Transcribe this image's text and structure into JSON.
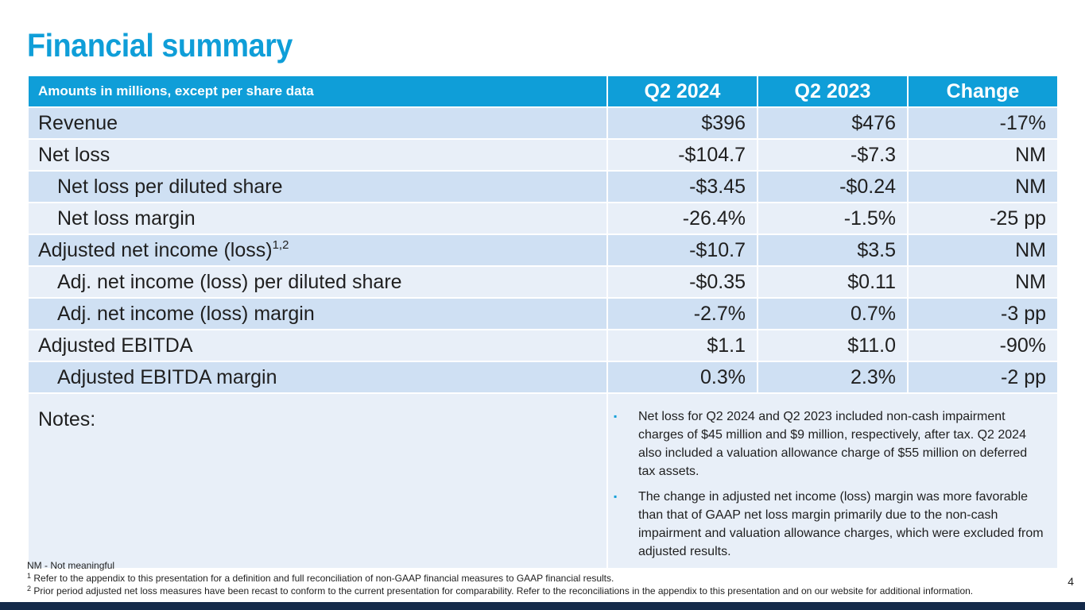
{
  "title": "Financial summary",
  "table": {
    "header": {
      "label": "Amounts in millions, except per share data",
      "col1": "Q2 2024",
      "col2": "Q2 2023",
      "col3": "Change"
    },
    "rows": [
      {
        "label": "Revenue",
        "sup": "",
        "q2_2024": "$396",
        "q2_2023": "$476",
        "change": "-17%"
      },
      {
        "label": "Net loss",
        "sup": "",
        "q2_2024": "-$104.7",
        "q2_2023": "-$7.3",
        "change": "NM"
      },
      {
        "label": "Net loss per diluted share",
        "sup": "",
        "q2_2024": "-$3.45",
        "q2_2023": "-$0.24",
        "change": "NM"
      },
      {
        "label": "Net loss margin",
        "sup": "",
        "q2_2024": "-26.4%",
        "q2_2023": "-1.5%",
        "change": "-25 pp"
      },
      {
        "label": "Adjusted net income (loss)",
        "sup": "1,2",
        "q2_2024": "-$10.7",
        "q2_2023": "$3.5",
        "change": "NM"
      },
      {
        "label": "Adj. net income (loss) per diluted share",
        "sup": "",
        "q2_2024": "-$0.35",
        "q2_2023": "$0.11",
        "change": "NM"
      },
      {
        "label": "Adj. net income (loss) margin",
        "sup": "",
        "q2_2024": "-2.7%",
        "q2_2023": "0.7%",
        "change": "-3 pp"
      },
      {
        "label": "Adjusted EBITDA",
        "sup": "",
        "q2_2024": "$1.1",
        "q2_2023": "$11.0",
        "change": "-90%"
      },
      {
        "label": "Adjusted EBITDA margin",
        "sup": "",
        "q2_2024": "0.3%",
        "q2_2023": "2.3%",
        "change": "-2 pp"
      }
    ],
    "notes_label": "Notes:",
    "notes_bullet": "▪",
    "notes": [
      "Net loss for Q2 2024 and Q2 2023 included non-cash impairment charges of $45 million and $9 million, respectively, after tax. Q2 2024 also included a valuation allowance charge of $55 million on deferred tax assets.",
      "The change in adjusted net income (loss) margin was more favorable than that of GAAP net loss margin primarily due to the non-cash impairment and valuation allowance charges, which were excluded from adjusted results."
    ]
  },
  "footnotes": {
    "nm": "NM - Not meaningful",
    "fn1_marker": "1",
    "fn1": "Refer to the appendix to this presentation for a definition and full reconciliation of non-GAAP financial measures to GAAP financial results.",
    "fn2_marker": "2",
    "fn2": "Prior period adjusted net loss measures have been recast to conform to the current presentation for comparability. Refer to the reconciliations in the appendix to this presentation and on our website for additional information."
  },
  "page_number": "4",
  "colors": {
    "accent": "#0f9ed8",
    "row_dark": "#cfe0f3",
    "row_light": "#e8eff8",
    "bottom_bar": "#142a4a"
  }
}
